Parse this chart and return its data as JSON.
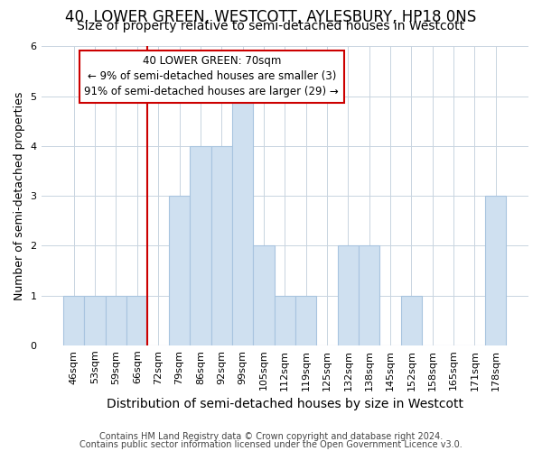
{
  "title1": "40, LOWER GREEN, WESTCOTT, AYLESBURY, HP18 0NS",
  "title2": "Size of property relative to semi-detached houses in Westcott",
  "xlabel": "Distribution of semi-detached houses by size in Westcott",
  "ylabel": "Number of semi-detached properties",
  "categories": [
    "46sqm",
    "53sqm",
    "59sqm",
    "66sqm",
    "72sqm",
    "79sqm",
    "86sqm",
    "92sqm",
    "99sqm",
    "105sqm",
    "112sqm",
    "119sqm",
    "125sqm",
    "132sqm",
    "138sqm",
    "145sqm",
    "152sqm",
    "158sqm",
    "165sqm",
    "171sqm",
    "178sqm"
  ],
  "values": [
    1,
    1,
    1,
    1,
    0,
    3,
    4,
    4,
    5,
    2,
    1,
    1,
    0,
    2,
    2,
    0,
    1,
    0,
    0,
    0,
    3
  ],
  "bar_color": "#cfe0f0",
  "bar_edge_color": "#a8c4df",
  "vline_color": "#cc0000",
  "vline_x": 3.5,
  "annotation_line1": "40 LOWER GREEN: 70sqm",
  "annotation_line2": "← 9% of semi-detached houses are smaller (3)",
  "annotation_line3": "91% of semi-detached houses are larger (29) →",
  "annotation_box_facecolor": "#ffffff",
  "annotation_box_edgecolor": "#cc0000",
  "footer1": "Contains HM Land Registry data © Crown copyright and database right 2024.",
  "footer2": "Contains public sector information licensed under the Open Government Licence v3.0.",
  "ylim": [
    0,
    6
  ],
  "yticks": [
    0,
    1,
    2,
    3,
    4,
    5,
    6
  ],
  "background_color": "#ffffff",
  "title1_fontsize": 12,
  "title2_fontsize": 10,
  "xlabel_fontsize": 10,
  "ylabel_fontsize": 9,
  "tick_fontsize": 8,
  "annotation_fontsize": 8.5,
  "footer_fontsize": 7
}
